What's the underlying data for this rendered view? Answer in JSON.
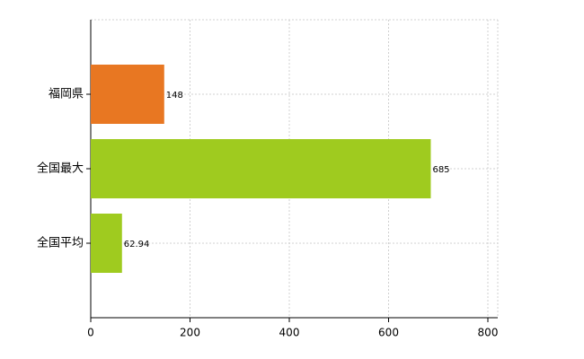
{
  "chart_data": {
    "type": "bar",
    "orientation": "horizontal",
    "categories": [
      "福岡県",
      "全国最大",
      "全国平均"
    ],
    "values": [
      148,
      685,
      62.94
    ],
    "colors": [
      "#e87722",
      "#9fcb1f",
      "#9fcb1f"
    ],
    "xlim": [
      0,
      800
    ],
    "xticks": [
      0,
      200,
      400,
      600,
      800
    ],
    "grid": true
  }
}
